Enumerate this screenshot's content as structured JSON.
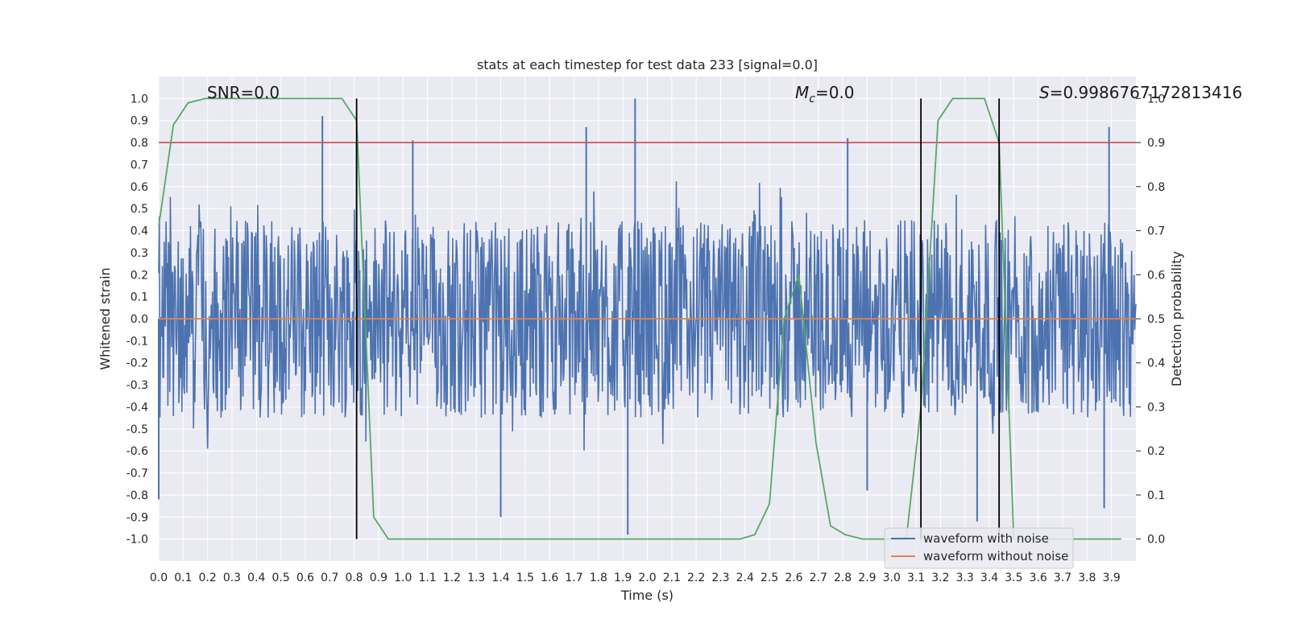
{
  "chart_data": {
    "type": "line",
    "title": "stats at each timestep for test data 233 [signal=0.0]",
    "xlabel": "Time (s)",
    "ylabel": "Whitened strain",
    "y2label": "Detection probability",
    "xlim": [
      0.0,
      4.0
    ],
    "ylim": [
      -1.1,
      1.1
    ],
    "y2lim": [
      -0.05,
      1.05
    ],
    "xticks": [
      "0.0",
      "0.1",
      "0.2",
      "0.3",
      "0.4",
      "0.5",
      "0.6",
      "0.7",
      "0.8",
      "0.9",
      "1.0",
      "1.1",
      "1.2",
      "1.3",
      "1.4",
      "1.5",
      "1.6",
      "1.7",
      "1.8",
      "1.9",
      "2.0",
      "2.1",
      "2.2",
      "2.3",
      "2.4",
      "2.5",
      "2.6",
      "2.7",
      "2.8",
      "2.9",
      "3.0",
      "3.1",
      "3.2",
      "3.3",
      "3.4",
      "3.5",
      "3.6",
      "3.7",
      "3.8",
      "3.9"
    ],
    "yticks": [
      "1.0",
      "0.9",
      "0.8",
      "0.7",
      "0.6",
      "0.5",
      "0.4",
      "0.3",
      "0.2",
      "0.1",
      "0.0",
      "-0.1",
      "-0.2",
      "-0.3",
      "-0.4",
      "-0.5",
      "-0.6",
      "-0.7",
      "-0.8",
      "-0.9",
      "-1.0"
    ],
    "y2ticks": [
      "1.0",
      "0.9",
      "0.8",
      "0.7",
      "0.6",
      "0.5",
      "0.4",
      "0.3",
      "0.2",
      "0.1",
      "0.0"
    ],
    "grid": true,
    "legend_position": "lower-right",
    "annotations": {
      "snr": "SNR=0.0",
      "mc_symbol": "M",
      "mc_sub": "c",
      "mc_value": "=0.0",
      "s_symbol": "S",
      "s_value": "=0.9986767172813416"
    },
    "series": [
      {
        "name": "waveform with noise",
        "color": "#4c72b0",
        "axis": "left",
        "style": "noise",
        "amplitude": 0.45,
        "spikes": [
          {
            "x": 0.67,
            "y": 0.92
          },
          {
            "x": 0.81,
            "y": 0.8
          },
          {
            "x": 1.04,
            "y": 0.81
          },
          {
            "x": 1.75,
            "y": 0.87
          },
          {
            "x": 1.95,
            "y": 1.0
          },
          {
            "x": 2.82,
            "y": 0.82
          },
          {
            "x": 3.89,
            "y": 0.87
          },
          {
            "x": 1.92,
            "y": -0.98
          },
          {
            "x": 1.4,
            "y": -0.9
          },
          {
            "x": 3.35,
            "y": -0.92
          },
          {
            "x": 3.87,
            "y": -0.86
          },
          {
            "x": 0.0,
            "y": -0.82
          },
          {
            "x": 2.9,
            "y": -0.78
          }
        ]
      },
      {
        "name": "waveform without noise",
        "color": "#dd8452",
        "axis": "left",
        "x": [
          0.0,
          4.0
        ],
        "y": [
          0.0,
          0.0
        ]
      },
      {
        "name": "",
        "color": "#55a868",
        "axis": "right",
        "x": [
          0.0,
          0.06,
          0.12,
          0.19,
          0.25,
          0.31,
          0.38,
          0.44,
          0.5,
          0.56,
          0.62,
          0.69,
          0.75,
          0.81,
          0.88,
          0.94,
          1.0,
          1.06,
          1.12,
          1.19,
          1.25,
          1.31,
          1.38,
          1.44,
          1.5,
          1.56,
          1.62,
          1.69,
          1.75,
          1.81,
          1.88,
          1.94,
          2.0,
          2.06,
          2.12,
          2.19,
          2.25,
          2.31,
          2.38,
          2.44,
          2.5,
          2.56,
          2.62,
          2.69,
          2.75,
          2.81,
          2.88,
          2.94,
          3.0,
          3.06,
          3.12,
          3.19,
          3.25,
          3.31,
          3.38,
          3.44,
          3.5,
          3.56,
          3.62,
          3.69,
          3.75,
          3.81,
          3.88,
          3.94
        ],
        "y": [
          0.71,
          0.94,
          0.99,
          1.0,
          1.0,
          1.0,
          1.0,
          1.0,
          1.0,
          1.0,
          1.0,
          1.0,
          1.0,
          0.95,
          0.05,
          0.0,
          0.0,
          0.0,
          0.0,
          0.0,
          0.0,
          0.0,
          0.0,
          0.0,
          0.0,
          0.0,
          0.0,
          0.0,
          0.0,
          0.0,
          0.0,
          0.0,
          0.0,
          0.0,
          0.0,
          0.0,
          0.0,
          0.0,
          0.0,
          0.01,
          0.08,
          0.5,
          0.6,
          0.22,
          0.03,
          0.01,
          0.0,
          0.0,
          0.0,
          0.0,
          0.3,
          0.95,
          1.0,
          1.0,
          1.0,
          0.9,
          0.0,
          0.0,
          0.0,
          0.0,
          0.0,
          0.0,
          0.0,
          0.0
        ]
      }
    ],
    "threshold": {
      "y2": 0.9,
      "color": "#c44e52"
    },
    "vlines": [
      0.81,
      3.12,
      3.44
    ],
    "vline_range": [
      -1.0,
      1.0
    ],
    "colors": {
      "axes_bg": "#eaeaf2",
      "grid": "#ffffff",
      "vline": "#000000"
    }
  }
}
